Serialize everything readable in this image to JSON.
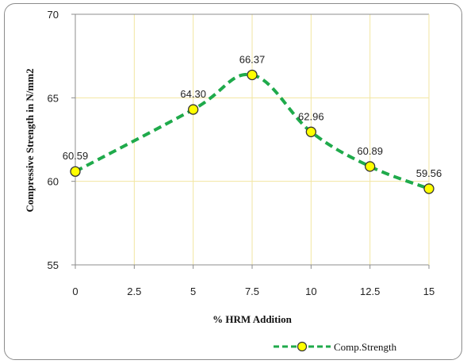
{
  "chart_data": {
    "type": "line",
    "x": [
      0,
      2.5,
      5,
      7.5,
      10,
      12.5,
      15
    ],
    "x_tick_labels": [
      "0",
      "2.5",
      "5",
      "7.5",
      "10",
      "12.5",
      "15"
    ],
    "y_tick_labels": [
      "55",
      "60",
      "65",
      "70"
    ],
    "xlim": [
      0,
      15
    ],
    "ylim": [
      55,
      70
    ],
    "xlabel": "% HRM Addition",
    "ylabel": "Compressive Strength in N/mm2",
    "series": [
      {
        "name": "Comp.Strength",
        "x": [
          0,
          5,
          7.5,
          10,
          12.5,
          15
        ],
        "values": [
          60.59,
          64.3,
          66.37,
          62.96,
          60.89,
          59.56
        ],
        "labels": [
          "60.59",
          "64.30",
          "66.37",
          "62.96",
          "60.89",
          "59.56"
        ],
        "line_color": "#1faa4b",
        "line_style": "dashed",
        "marker_fill": "#ffff00",
        "marker_stroke": "#333333"
      }
    ],
    "grid": {
      "vertical": true,
      "horizontal": true,
      "color": "#f2e6a0"
    },
    "legend": {
      "position": "bottom-right"
    }
  }
}
